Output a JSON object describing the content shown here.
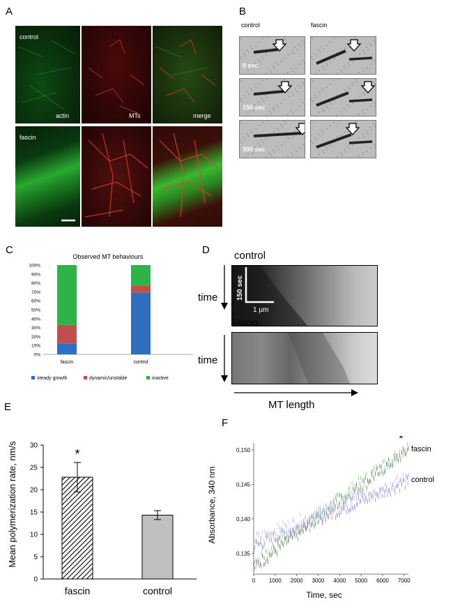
{
  "panels": {
    "a": {
      "letter": "A",
      "rows": [
        {
          "name": "control",
          "cells": [
            {
              "label": "control",
              "channel": "green"
            },
            {
              "label": "",
              "channel": "red"
            },
            {
              "label": "",
              "channel": "merge"
            }
          ]
        },
        {
          "name": "fascin",
          "cells": [
            {
              "label": "fascin",
              "channel": "green"
            },
            {
              "label": "",
              "channel": "red"
            },
            {
              "label": "",
              "channel": "merge"
            }
          ]
        }
      ],
      "channel_labels": [
        "actin",
        "MTs",
        "merge"
      ]
    },
    "b": {
      "letter": "B",
      "columns": [
        "control",
        "fascin"
      ],
      "times": [
        "0 sec",
        "150 sec",
        "300 sec"
      ]
    },
    "c": {
      "letter": "C"
    },
    "d": {
      "letter": "D",
      "control_label": "control",
      "fascin_label": "fascin",
      "time_label": "time",
      "scale_time": "150 sec",
      "scale_length": "1 µm",
      "x_label": "MT length"
    },
    "e": {
      "letter": "E"
    },
    "f": {
      "letter": "F"
    }
  },
  "chart_data": [
    {
      "id": "C",
      "type": "bar",
      "stacked": true,
      "title": "Observed MT behaviours",
      "categories": [
        "fascin",
        "control"
      ],
      "series": [
        {
          "name": "steady growth",
          "values": [
            12,
            69
          ],
          "color": "#2f6fbf"
        },
        {
          "name": "dynamic/unstable",
          "values": [
            21,
            8
          ],
          "color": "#c0504d"
        },
        {
          "name": "inactive",
          "values": [
            67,
            23
          ],
          "color": "#2eb34a"
        }
      ],
      "yticks": [
        "0%",
        "10%",
        "20%",
        "30%",
        "40%",
        "50%",
        "60%",
        "70%",
        "80%",
        "90%",
        "100%"
      ],
      "ylim": [
        0,
        100
      ],
      "legend": "bottom"
    },
    {
      "id": "E",
      "type": "bar",
      "categories": [
        "fascin",
        "control"
      ],
      "values": [
        22.8,
        14.3
      ],
      "errors": [
        3.3,
        1.0
      ],
      "ylabel": "Mean polymerization rate, nm/s",
      "ylim": [
        0,
        30
      ],
      "yticks": [
        "0",
        "5",
        "10",
        "15",
        "20",
        "25",
        "30"
      ],
      "annotations": [
        "*"
      ],
      "colors": [
        "#ffffff",
        "#c0c0c0"
      ]
    },
    {
      "id": "F",
      "type": "scatter",
      "xlabel": "Time, sec",
      "ylabel": "Absorbance, 340 nm",
      "xlim": [
        0,
        7200
      ],
      "ylim": [
        0.132,
        0.151
      ],
      "xticks": [
        "0",
        "1000",
        "2000",
        "3000",
        "4000",
        "5000",
        "6000",
        "7000"
      ],
      "yticks": [
        "0,135",
        "0,140",
        "0,145",
        "0,150"
      ],
      "series": [
        {
          "name": "fascin",
          "x0": 0,
          "x1": 7200,
          "y0": 0.1335,
          "y1": 0.1505,
          "color": "#20a020"
        },
        {
          "name": "fascin",
          "x0": 0,
          "x1": 7200,
          "y0": 0.133,
          "y1": 0.15,
          "color": "#1a1a1a"
        },
        {
          "name": "control",
          "x0": 0,
          "x1": 7200,
          "y0": 0.136,
          "y1": 0.1455,
          "color": "#2a2a9a"
        },
        {
          "name": "control",
          "x0": 0,
          "x1": 7200,
          "y0": 0.137,
          "y1": 0.146,
          "color": "#8a8ad0"
        }
      ],
      "series_labels": [
        "fascin",
        "control"
      ],
      "annotations": [
        "*"
      ]
    }
  ]
}
